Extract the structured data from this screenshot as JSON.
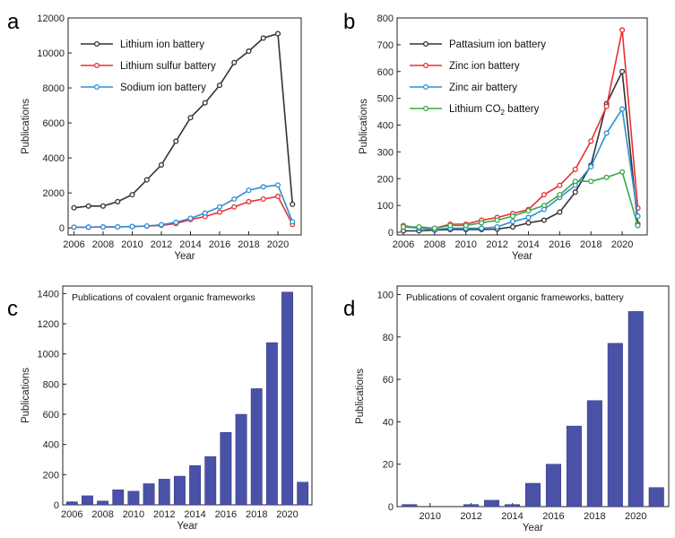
{
  "chart_data": [
    {
      "panel": "a",
      "type": "line",
      "xlabel": "Year",
      "ylabel": "Publications",
      "xlim": [
        2005.6,
        2021.6
      ],
      "ylim": [
        -400,
        12000
      ],
      "xticks": [
        2006,
        2008,
        2010,
        2012,
        2014,
        2016,
        2018,
        2020
      ],
      "yticks": [
        0,
        2000,
        4000,
        6000,
        8000,
        10000,
        12000
      ],
      "legend_position": "top-left",
      "x": [
        2006,
        2007,
        2008,
        2009,
        2010,
        2011,
        2012,
        2013,
        2014,
        2015,
        2016,
        2017,
        2018,
        2019,
        2020,
        2021
      ],
      "series": [
        {
          "name": "Lithium ion battery",
          "color": "#333333",
          "values": [
            1150,
            1250,
            1250,
            1500,
            1900,
            2750,
            3600,
            4950,
            6300,
            7150,
            8150,
            9450,
            10100,
            10850,
            11100,
            1350
          ]
        },
        {
          "name": "Lithium sulfur battery",
          "color": "#e8312f",
          "values": [
            40,
            45,
            55,
            60,
            75,
            100,
            150,
            250,
            480,
            650,
            900,
            1200,
            1500,
            1650,
            1800,
            200
          ]
        },
        {
          "name": "Sodium ion battery",
          "color": "#2b8fd6",
          "values": [
            40,
            45,
            50,
            60,
            80,
            110,
            180,
            320,
            550,
            850,
            1200,
            1650,
            2150,
            2350,
            2450,
            350
          ]
        }
      ]
    },
    {
      "panel": "b",
      "type": "line",
      "xlabel": "Year",
      "ylabel": "Publications",
      "xlim": [
        2005.6,
        2021.6
      ],
      "ylim": [
        -10,
        800
      ],
      "xticks": [
        2006,
        2008,
        2010,
        2012,
        2014,
        2016,
        2018,
        2020
      ],
      "yticks": [
        0,
        100,
        200,
        300,
        400,
        500,
        600,
        700,
        800
      ],
      "legend_position": "top-left",
      "x": [
        2006,
        2007,
        2008,
        2009,
        2010,
        2011,
        2012,
        2013,
        2014,
        2015,
        2016,
        2017,
        2018,
        2019,
        2020,
        2021
      ],
      "series": [
        {
          "name": "Pattasium ion battery",
          "color": "#333333",
          "values": [
            5,
            5,
            8,
            10,
            10,
            10,
            12,
            20,
            35,
            45,
            75,
            150,
            250,
            480,
            600,
            30
          ]
        },
        {
          "name": "Zinc ion battery",
          "color": "#e8312f",
          "values": [
            25,
            15,
            15,
            30,
            30,
            45,
            55,
            70,
            85,
            140,
            175,
            235,
            340,
            470,
            755,
            90
          ]
        },
        {
          "name": "Zinc air battery",
          "color": "#2b8fd6",
          "values": [
            20,
            15,
            10,
            15,
            15,
            15,
            20,
            40,
            55,
            85,
            130,
            175,
            245,
            370,
            460,
            60
          ]
        },
        {
          "name": "Lithium CO",
          "name_sub": "2",
          "name_suffix": " battery",
          "color": "#3aa84a",
          "values": [
            20,
            20,
            15,
            25,
            25,
            35,
            45,
            60,
            80,
            100,
            140,
            190,
            190,
            205,
            225,
            25
          ]
        }
      ]
    },
    {
      "panel": "c",
      "type": "bar",
      "title": "Publications of covalent organic frameworks",
      "xlabel": "Year",
      "ylabel": "Publications",
      "xlim": [
        2005.4,
        2021.6
      ],
      "ylim": [
        0,
        1450
      ],
      "xticks": [
        2006,
        2008,
        2010,
        2012,
        2014,
        2016,
        2018,
        2020
      ],
      "yticks": [
        0,
        200,
        400,
        600,
        800,
        1000,
        1200,
        1400
      ],
      "color": "#4a52a8",
      "x": [
        2006,
        2007,
        2008,
        2009,
        2010,
        2011,
        2012,
        2013,
        2014,
        2015,
        2016,
        2017,
        2018,
        2019,
        2020,
        2021
      ],
      "values": [
        20,
        60,
        25,
        100,
        90,
        140,
        170,
        190,
        260,
        320,
        480,
        600,
        770,
        1075,
        1410,
        150
      ]
    },
    {
      "panel": "d",
      "type": "bar",
      "title": "Publications of covalent organic frameworks, battery",
      "xlabel": "Year",
      "ylabel": "Publications",
      "xlim": [
        2008.4,
        2021.6
      ],
      "ylim": [
        0,
        104
      ],
      "xticks": [
        2010,
        2012,
        2014,
        2016,
        2018,
        2020
      ],
      "yticks": [
        0,
        20,
        40,
        60,
        80,
        100
      ],
      "color": "#4a52a8",
      "x": [
        2009,
        2010,
        2011,
        2012,
        2013,
        2014,
        2015,
        2016,
        2017,
        2018,
        2019,
        2020,
        2021
      ],
      "values": [
        1,
        0,
        0,
        1,
        3,
        1,
        11,
        20,
        38,
        50,
        77,
        92,
        9
      ]
    }
  ]
}
